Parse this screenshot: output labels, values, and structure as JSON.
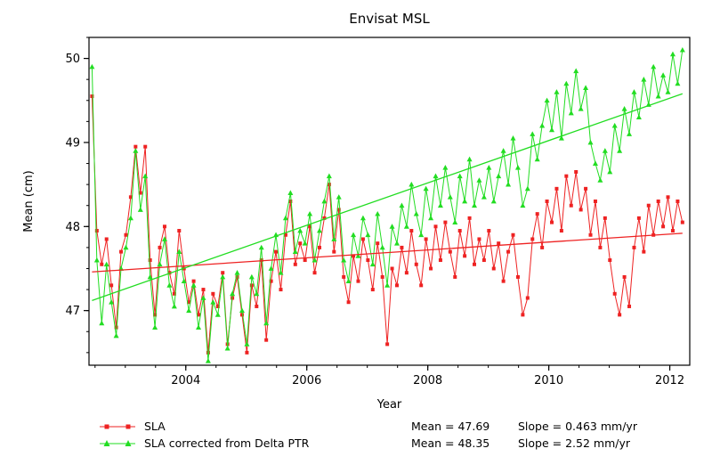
{
  "title": "Envisat MSL",
  "xlabel": "Year",
  "ylabel": "Mean (cm)",
  "legend": [
    {
      "label": "SLA",
      "mean_text": "Mean = 47.69",
      "slope_text": "Slope = 0.463 mm/yr"
    },
    {
      "label": "SLA corrected from Delta PTR",
      "mean_text": "Mean = 48.35",
      "slope_text": "Slope = 2.52 mm/yr"
    }
  ],
  "chart_data": {
    "type": "line",
    "title": "Envisat MSL",
    "xlabel": "Year",
    "ylabel": "Mean (cm)",
    "xlim": [
      2002.4,
      2012.33
    ],
    "ylim": [
      46.35,
      50.25
    ],
    "x_ticks_major": [
      2004,
      2006,
      2008,
      2010,
      2012
    ],
    "x_tick_minor_step": 0.5,
    "y_ticks_major": [
      47,
      48,
      49,
      50
    ],
    "y_tick_minor_step": 0.25,
    "grid": false,
    "legend_position": "bottom",
    "x_start": 2002.45,
    "x_step": 0.08,
    "series": [
      {
        "name": "SLA",
        "color": "#ee2222",
        "marker": "square",
        "mean": 47.69,
        "slope_mm_per_yr": 0.463,
        "values": [
          49.55,
          47.95,
          47.55,
          47.85,
          47.3,
          46.8,
          47.7,
          47.9,
          48.35,
          48.95,
          48.4,
          48.95,
          47.6,
          46.95,
          47.75,
          48.0,
          47.45,
          47.2,
          47.95,
          47.5,
          47.1,
          47.35,
          46.95,
          47.25,
          46.5,
          47.2,
          47.05,
          47.45,
          46.6,
          47.15,
          47.4,
          46.95,
          46.5,
          47.3,
          47.05,
          47.6,
          46.65,
          47.35,
          47.7,
          47.25,
          47.9,
          48.3,
          47.55,
          47.8,
          47.6,
          48.0,
          47.45,
          47.75,
          48.1,
          48.5,
          47.7,
          48.2,
          47.4,
          47.1,
          47.65,
          47.35,
          47.85,
          47.6,
          47.25,
          47.8,
          47.4,
          46.6,
          47.5,
          47.3,
          47.75,
          47.45,
          47.95,
          47.55,
          47.3,
          47.85,
          47.5,
          48.0,
          47.6,
          48.05,
          47.7,
          47.4,
          47.95,
          47.65,
          48.1,
          47.55,
          47.85,
          47.6,
          47.95,
          47.5,
          47.8,
          47.35,
          47.7,
          47.9,
          47.4,
          46.95,
          47.15,
          47.85,
          48.15,
          47.75,
          48.3,
          48.05,
          48.45,
          47.95,
          48.6,
          48.25,
          48.65,
          48.2,
          48.45,
          47.9,
          48.3,
          47.75,
          48.1,
          47.6,
          47.2,
          46.95,
          47.4,
          47.05,
          47.75,
          48.1,
          47.7,
          48.25,
          47.9,
          48.3,
          48.0,
          48.35,
          47.95,
          48.3,
          48.05
        ]
      },
      {
        "name": "SLA corrected from Delta PTR",
        "color": "#22dd22",
        "marker": "triangle",
        "mean": 48.35,
        "slope_mm_per_yr": 2.52,
        "values": [
          49.9,
          47.6,
          46.85,
          47.55,
          47.1,
          46.7,
          47.5,
          47.75,
          48.1,
          48.9,
          48.2,
          48.6,
          47.4,
          46.8,
          47.55,
          47.85,
          47.3,
          47.05,
          47.7,
          47.35,
          47.0,
          47.3,
          46.8,
          47.15,
          46.4,
          47.1,
          46.95,
          47.4,
          46.55,
          47.2,
          47.45,
          47.0,
          46.6,
          47.4,
          47.2,
          47.75,
          46.85,
          47.5,
          47.9,
          47.45,
          48.1,
          48.4,
          47.7,
          47.95,
          47.8,
          48.15,
          47.6,
          47.95,
          48.3,
          48.6,
          47.85,
          48.35,
          47.6,
          47.35,
          47.9,
          47.65,
          48.1,
          47.9,
          47.55,
          48.15,
          47.75,
          47.3,
          48.0,
          47.8,
          48.25,
          48.0,
          48.5,
          48.15,
          47.9,
          48.45,
          48.1,
          48.6,
          48.25,
          48.7,
          48.35,
          48.05,
          48.6,
          48.3,
          48.8,
          48.25,
          48.55,
          48.35,
          48.7,
          48.3,
          48.6,
          48.9,
          48.5,
          49.05,
          48.7,
          48.25,
          48.45,
          49.1,
          48.8,
          49.2,
          49.5,
          49.15,
          49.6,
          49.05,
          49.7,
          49.35,
          49.85,
          49.4,
          49.65,
          49.0,
          48.75,
          48.55,
          48.9,
          48.65,
          49.2,
          48.9,
          49.4,
          49.1,
          49.6,
          49.3,
          49.75,
          49.45,
          49.9,
          49.55,
          49.8,
          49.6,
          50.05,
          49.7,
          50.1
        ]
      }
    ],
    "trend_lines": [
      {
        "series": "SLA",
        "x": [
          2002.45,
          2012.21
        ],
        "y": [
          47.46,
          47.92
        ]
      },
      {
        "series": "SLA corrected from Delta PTR",
        "x": [
          2002.45,
          2012.21
        ],
        "y": [
          47.12,
          49.58
        ]
      }
    ]
  }
}
